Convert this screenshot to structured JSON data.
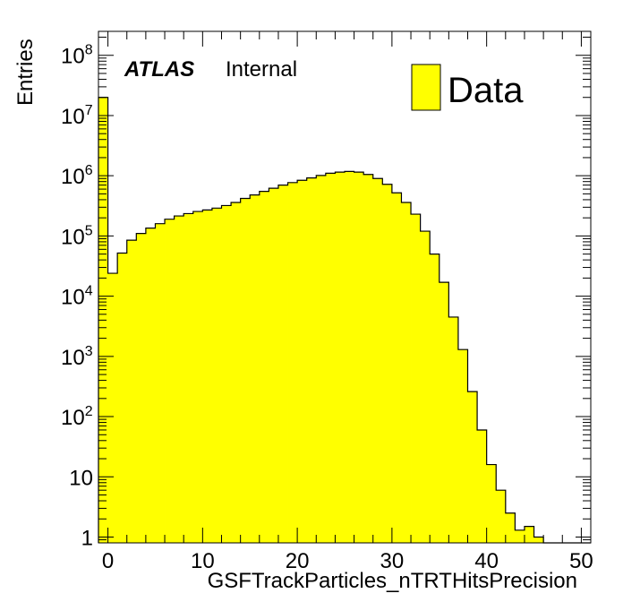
{
  "chart_data": {
    "type": "bar",
    "style": "step-histogram",
    "xlabel": "GSFTrackParticles_nTRTHitsPrecision",
    "ylabel": "Entries",
    "xlim": [
      -1,
      51
    ],
    "ylim": [
      0.8,
      250000000
    ],
    "yscale": "log",
    "bin_width": 1,
    "x_tick_labels": [
      "0",
      "10",
      "20",
      "30",
      "40",
      "50"
    ],
    "y_tick_labels": [
      {
        "base": "1",
        "exp": ""
      },
      {
        "base": "10",
        "exp": ""
      },
      {
        "base": "10",
        "exp": "2"
      },
      {
        "base": "10",
        "exp": "3"
      },
      {
        "base": "10",
        "exp": "4"
      },
      {
        "base": "10",
        "exp": "5"
      },
      {
        "base": "10",
        "exp": "6"
      },
      {
        "base": "10",
        "exp": "7"
      },
      {
        "base": "10",
        "exp": "8"
      }
    ],
    "atlas_label": "ATLAS",
    "atlas_sublabel": "Internal",
    "legend_position": "top-right",
    "series": [
      {
        "name": "Data",
        "color": "#ffff00",
        "bin_edges_start": -1,
        "values": [
          20000000,
          24000,
          52000,
          85000,
          110000,
          135000,
          160000,
          190000,
          215000,
          235000,
          255000,
          270000,
          290000,
          320000,
          360000,
          420000,
          480000,
          550000,
          620000,
          700000,
          770000,
          840000,
          920000,
          1010000,
          1100000,
          1150000,
          1180000,
          1150000,
          1050000,
          900000,
          720000,
          520000,
          360000,
          230000,
          120000,
          50000,
          17000,
          4500,
          1300,
          260,
          60,
          16,
          6,
          2.5,
          1.3,
          1.5,
          1.0,
          0,
          0,
          0,
          0,
          0
        ]
      }
    ]
  }
}
